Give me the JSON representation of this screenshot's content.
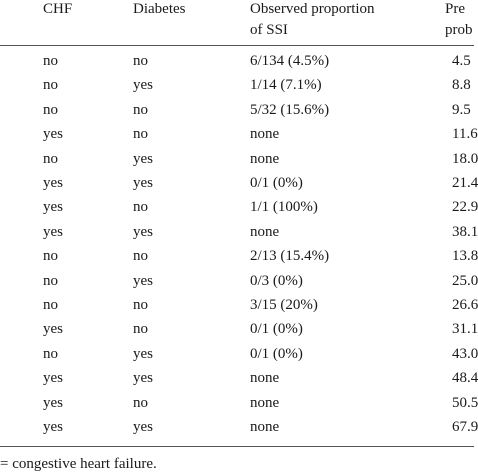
{
  "header": {
    "col_chf": "CHF",
    "col_diabetes": "Diabetes",
    "col_observed_line1": "Observed proportion",
    "col_observed_line2": "of SSI",
    "col_predicted_line1": "Pre",
    "col_predicted_line2": "prob"
  },
  "rows": [
    {
      "chf": "no",
      "diabetes": "no",
      "observed": "6/134 (4.5%)",
      "predicted": "4.5"
    },
    {
      "chf": "no",
      "diabetes": "yes",
      "observed": "1/14 (7.1%)",
      "predicted": "8.8"
    },
    {
      "chf": "no",
      "diabetes": "no",
      "observed": "5/32 (15.6%)",
      "predicted": "9.5"
    },
    {
      "chf": "yes",
      "diabetes": "no",
      "observed": "none",
      "predicted": "11.6"
    },
    {
      "chf": "no",
      "diabetes": "yes",
      "observed": "none",
      "predicted": "18.0"
    },
    {
      "chf": "yes",
      "diabetes": "yes",
      "observed": "0/1 (0%)",
      "predicted": "21.4"
    },
    {
      "chf": "yes",
      "diabetes": "no",
      "observed": "1/1 (100%)",
      "predicted": "22.9"
    },
    {
      "chf": "yes",
      "diabetes": "yes",
      "observed": "none",
      "predicted": "38.1"
    },
    {
      "chf": "no",
      "diabetes": "no",
      "observed": "2/13 (15.4%)",
      "predicted": "13.8"
    },
    {
      "chf": "no",
      "diabetes": "yes",
      "observed": "0/3 (0%)",
      "predicted": "25.0"
    },
    {
      "chf": "no",
      "diabetes": "no",
      "observed": "3/15 (20%)",
      "predicted": "26.6"
    },
    {
      "chf": "yes",
      "diabetes": "no",
      "observed": "0/1 (0%)",
      "predicted": "31.1"
    },
    {
      "chf": "no",
      "diabetes": "yes",
      "observed": "0/1 (0%)",
      "predicted": "43.0"
    },
    {
      "chf": "yes",
      "diabetes": "yes",
      "observed": "none",
      "predicted": "48.4"
    },
    {
      "chf": "yes",
      "diabetes": "no",
      "observed": "none",
      "predicted": "50.5"
    },
    {
      "chf": "yes",
      "diabetes": "yes",
      "observed": "none",
      "predicted": "67.9"
    }
  ],
  "footnote": "= congestive heart failure."
}
